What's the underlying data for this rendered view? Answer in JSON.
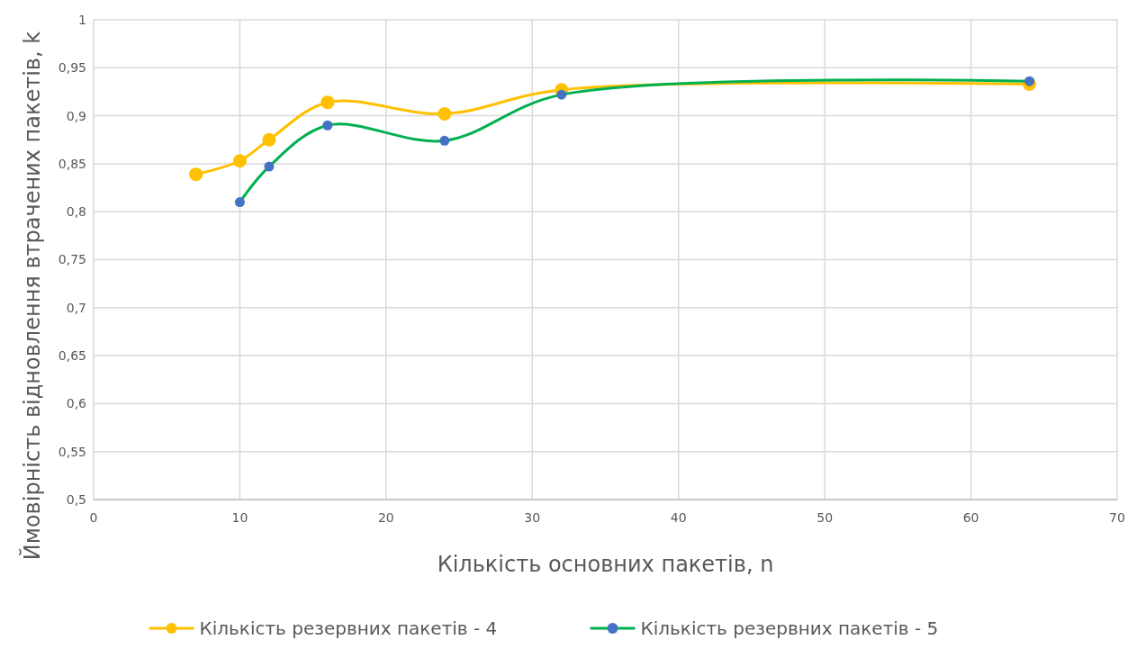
{
  "chart_data": {
    "type": "line",
    "xlabel": "Кількість основних пакетів, n",
    "ylabel": "Ймовірність відновлення втрачених пакетів, k",
    "xlim": [
      0,
      70
    ],
    "xticks": [
      0,
      10,
      20,
      30,
      40,
      50,
      60,
      70
    ],
    "ylim": [
      0.5,
      1
    ],
    "yticks": [
      {
        "value": 0.5,
        "label": "0,5"
      },
      {
        "value": 0.55,
        "label": "0,55"
      },
      {
        "value": 0.6,
        "label": "0,6"
      },
      {
        "value": 0.65,
        "label": "0,65"
      },
      {
        "value": 0.7,
        "label": "0,7"
      },
      {
        "value": 0.75,
        "label": "0,75"
      },
      {
        "value": 0.8,
        "label": "0,8"
      },
      {
        "value": 0.85,
        "label": "0,85"
      },
      {
        "value": 0.9,
        "label": "0,9"
      },
      {
        "value": 0.95,
        "label": "0,95"
      },
      {
        "value": 1,
        "label": "1"
      }
    ],
    "grid": true,
    "legend": "bottom",
    "marker": "circle",
    "line_style": "solid",
    "series": [
      {
        "name": "Кількість резервних пакетів - 4",
        "color": "#ffc000",
        "x": [
          7,
          10,
          12,
          16,
          24,
          32,
          64
        ],
        "values": [
          0.839,
          0.853,
          0.875,
          0.914,
          0.902,
          0.927,
          0.933
        ]
      },
      {
        "name": "Кількість резервних пакетів - 5",
        "color": "#00b050",
        "colors": [
          "#4472c4",
          "#4472c4",
          "#4472c4",
          "#4472c4",
          "#4472c4",
          "#4472c4"
        ],
        "x": [
          10,
          12,
          16,
          24,
          32,
          64
        ],
        "values": [
          0.81,
          0.847,
          0.89,
          0.874,
          0.922,
          0.936
        ]
      }
    ]
  }
}
